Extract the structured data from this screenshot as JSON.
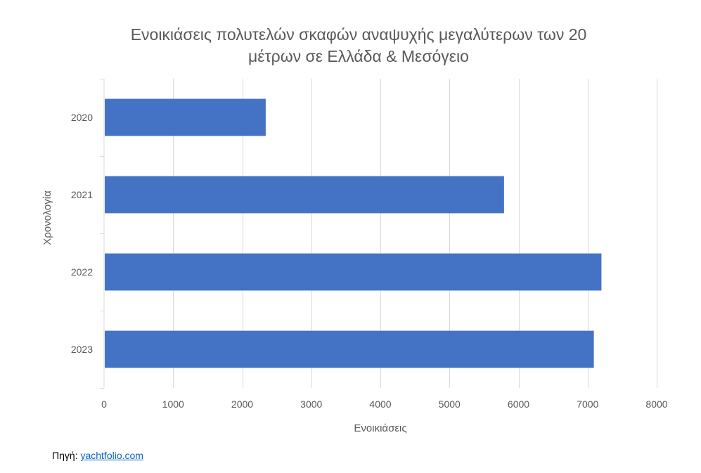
{
  "chart_data": {
    "type": "bar",
    "orientation": "horizontal",
    "title_lines": [
      "Ενοικιάσεις πολυτελών σκαφών αναψυχής μεγαλύτερων των 20",
      "μέτρων σε Ελλάδα & Μεσόγειο"
    ],
    "categories": [
      "2020",
      "2021",
      "2022",
      "2023"
    ],
    "values": [
      2340,
      5790,
      7200,
      7090
    ],
    "xlabel": "Ενοικιάσεις",
    "ylabel": "Χρονολογία",
    "xlim": [
      0,
      8000
    ],
    "xticks": [
      0,
      1000,
      2000,
      3000,
      4000,
      5000,
      6000,
      7000,
      8000
    ],
    "grid": true,
    "bar_color": "#4472c4"
  },
  "source": {
    "label": "Πηγή:",
    "link_text": "yachtfolio.com"
  }
}
